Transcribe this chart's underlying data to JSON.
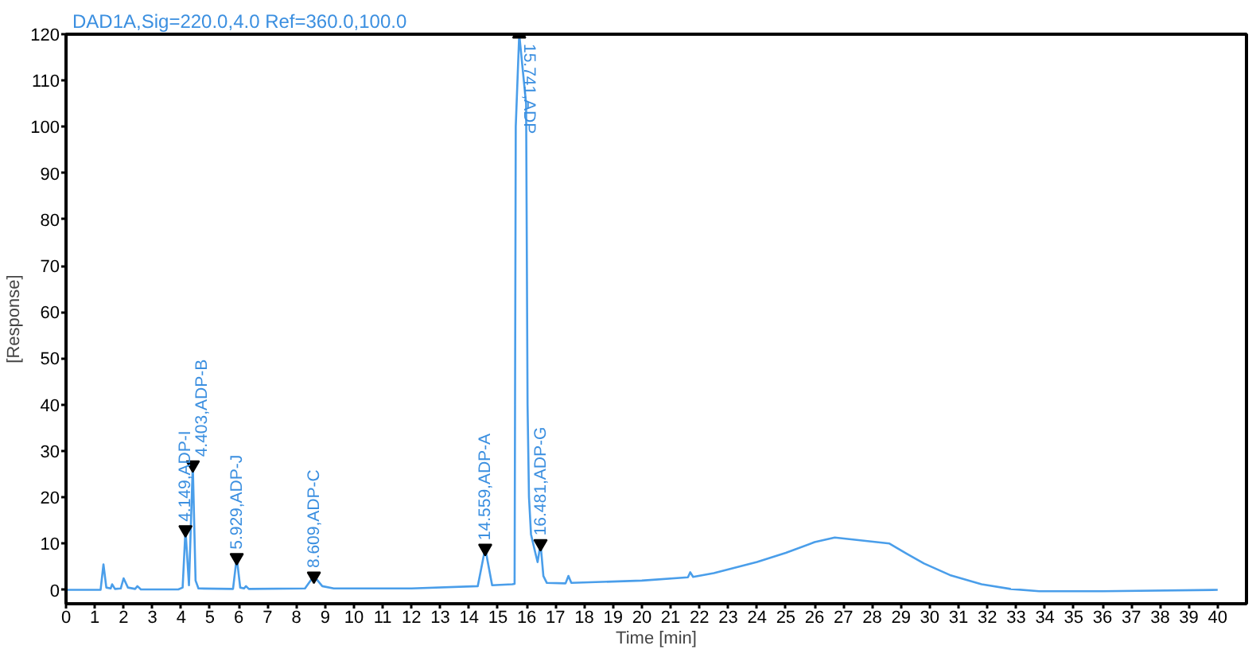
{
  "chart_data": {
    "type": "line",
    "title": "DAD1A,Sig=220.0,4.0  Ref=360.0,100.0",
    "xlabel": "Time [min]",
    "ylabel": "[Response]",
    "xlim": [
      0,
      41
    ],
    "ylim": [
      -3,
      120
    ],
    "xticks": [
      0,
      1,
      2,
      3,
      4,
      5,
      6,
      7,
      8,
      9,
      10,
      11,
      12,
      13,
      14,
      15,
      16,
      17,
      18,
      19,
      20,
      21,
      22,
      23,
      24,
      25,
      26,
      27,
      28,
      29,
      30,
      31,
      32,
      33,
      34,
      35,
      36,
      37,
      38,
      39,
      40
    ],
    "yticks": [
      0,
      10,
      20,
      30,
      40,
      50,
      60,
      70,
      80,
      90,
      100,
      110,
      120
    ],
    "series": [
      {
        "color": "#4a9eea",
        "x": [
          0,
          1.2,
          1.3,
          1.4,
          1.55,
          1.6,
          1.7,
          1.9,
          2.0,
          2.15,
          2.4,
          2.48,
          2.6,
          3.9,
          4.05,
          4.149,
          4.27,
          4.403,
          4.5,
          4.6,
          5.8,
          5.929,
          6.05,
          6.18,
          6.25,
          6.35,
          8.3,
          8.609,
          8.9,
          9.3,
          12,
          14.3,
          14.559,
          14.8,
          15.5,
          15.58,
          15.62,
          15.741,
          15.98,
          16.03,
          16.08,
          16.15,
          16.3,
          16.38,
          16.481,
          16.58,
          16.7,
          17.35,
          17.45,
          17.55,
          20,
          21.6,
          21.68,
          21.78,
          22.5,
          24,
          25,
          26,
          26.7,
          28.6,
          29.2,
          29.8,
          30.7,
          31.8,
          32.8,
          33.8,
          36,
          40
        ],
        "values": [
          0,
          0,
          5.5,
          0.5,
          0.3,
          1.2,
          0.2,
          0.3,
          2.5,
          0.5,
          0.2,
          0.8,
          0.1,
          0.1,
          0.5,
          13,
          1,
          27,
          2,
          0.3,
          0.2,
          7,
          0.5,
          0.3,
          0.8,
          0.2,
          0.3,
          3,
          0.8,
          0.3,
          0.3,
          0.8,
          9,
          1,
          1.2,
          1.3,
          100,
          120,
          105,
          40,
          20,
          12,
          8,
          6,
          10,
          3,
          1.5,
          1.4,
          3,
          1.5,
          2,
          2.7,
          3.8,
          2.8,
          3.6,
          6,
          8,
          10.3,
          11.3,
          10,
          7.8,
          5.7,
          3.2,
          1.2,
          0.2,
          -0.3,
          -0.3,
          0
        ]
      },
      {
        "type": "scatter",
        "marker": "triangle",
        "color": "#000000",
        "x": [
          4.149,
          4.403,
          5.929,
          8.609,
          14.559,
          15.741,
          16.481
        ],
        "values": [
          13,
          27,
          7,
          3,
          9,
          120,
          10
        ]
      }
    ],
    "annotations": [
      {
        "text": "4.149,ADP-I",
        "x": 4.149,
        "y": 13
      },
      {
        "text": "4.403,ADP-B",
        "x": 4.403,
        "y": 27
      },
      {
        "text": "5.929,ADP-J",
        "x": 5.929,
        "y": 7
      },
      {
        "text": "8.609,ADP-C",
        "x": 8.609,
        "y": 3
      },
      {
        "text": "14.559,ADP-A",
        "x": 14.559,
        "y": 9
      },
      {
        "text": "15.741,ADP",
        "x": 15.741,
        "y": 120
      },
      {
        "text": "16.481,ADP-G",
        "x": 16.481,
        "y": 10
      }
    ]
  }
}
